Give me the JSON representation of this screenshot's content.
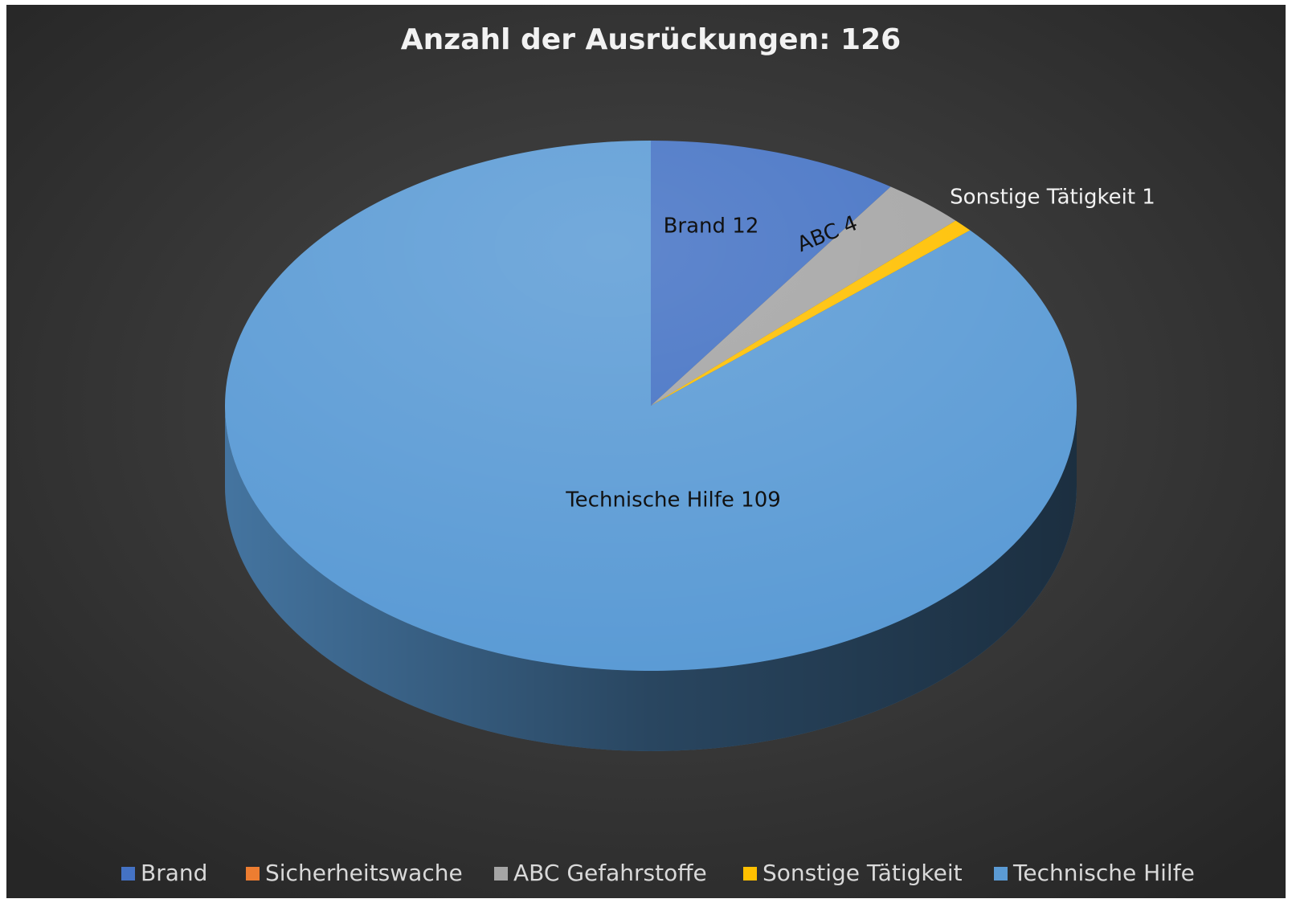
{
  "chart_data": {
    "type": "pie3d",
    "title": "Anzahl der Ausrückungen: 126",
    "categories": [
      "Brand",
      "Sicherheitswache",
      "ABC Gefahrstoffe",
      "Sonstige Tätigkeit",
      "Technische Hilfe"
    ],
    "values": [
      12,
      0,
      4,
      1,
      109
    ],
    "value_labels": [
      "Brand 12",
      null,
      "ABC 4",
      "Sonstige Tätigkeit 1",
      "Technische Hilfe 109"
    ],
    "colors": [
      "#4472c4",
      "#ed7d31",
      "#a5a5a5",
      "#ffc000",
      "#5b9bd5"
    ],
    "legend": "bottom"
  }
}
